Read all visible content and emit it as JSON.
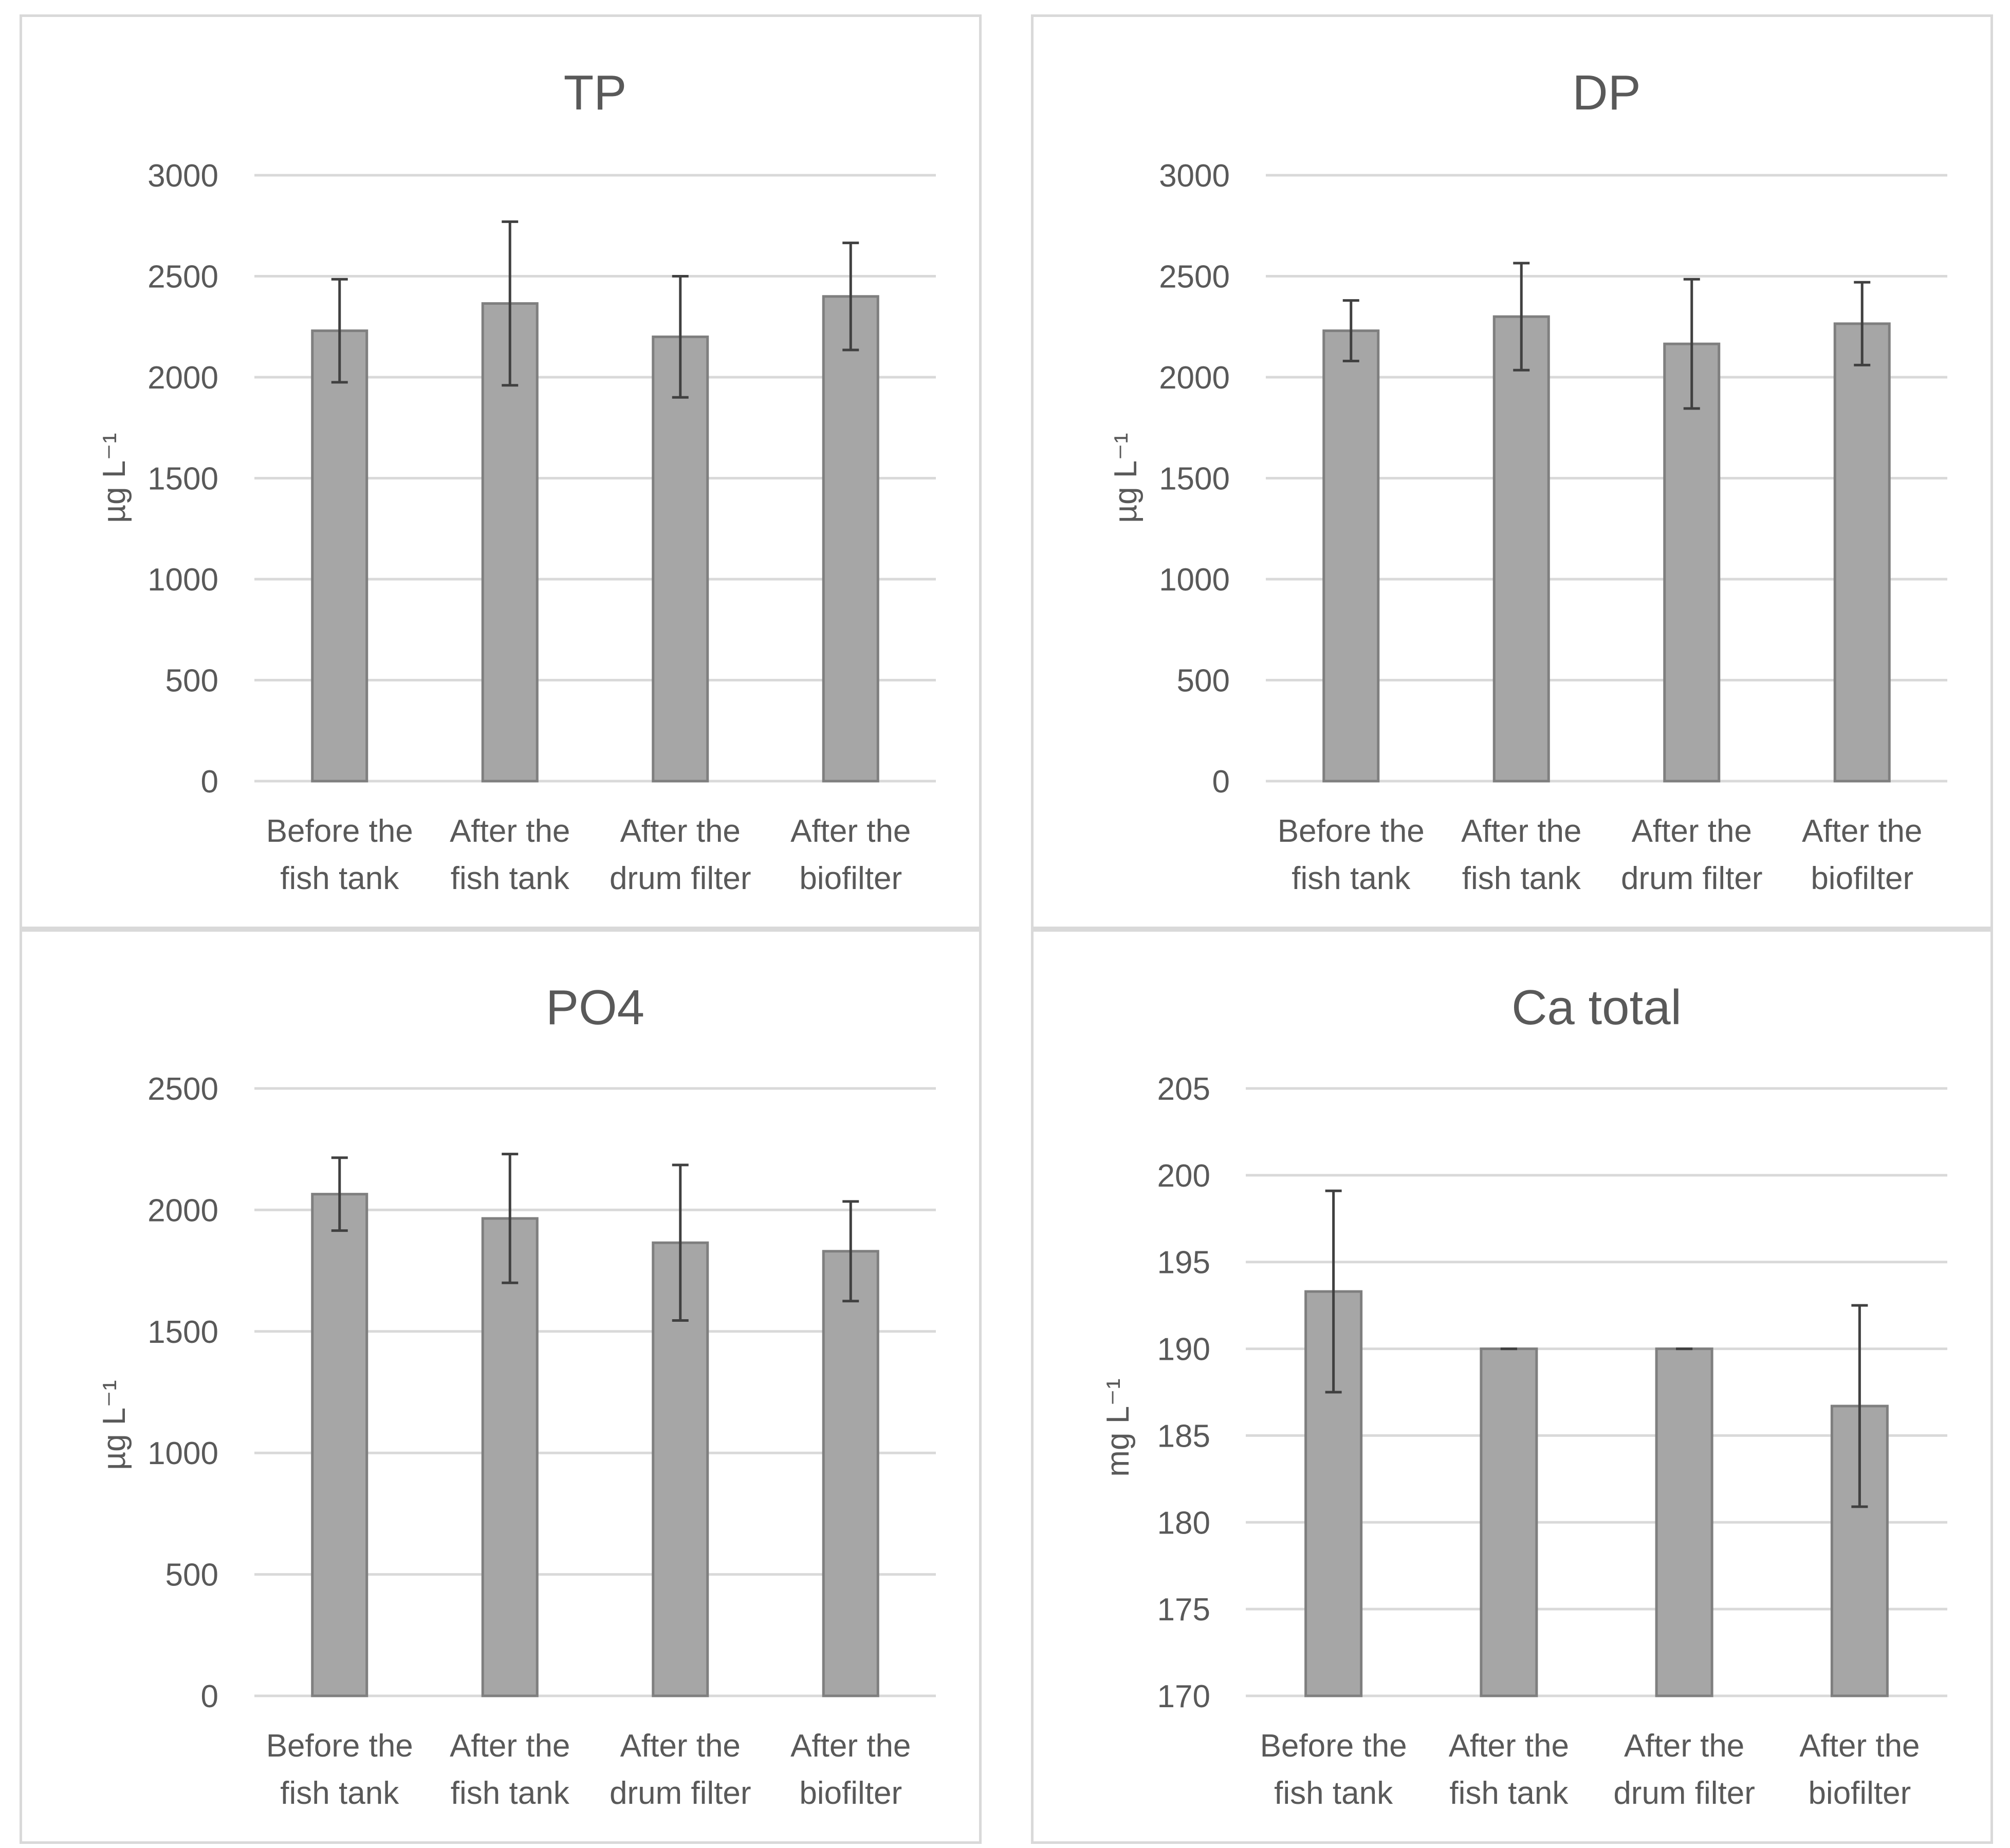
{
  "colors": {
    "bar_fill": "#a6a6a6",
    "bar_stroke": "#7f7f7f",
    "error_bar": "#404040",
    "gridline": "#d9d9d9",
    "text": "#595959"
  },
  "chart_data": [
    {
      "type": "bar",
      "title": "TP",
      "ylabel": "µg L⁻¹",
      "xlabel": "",
      "categories": [
        [
          "Before the",
          "fish tank"
        ],
        [
          "After the",
          "fish tank"
        ],
        [
          "After the",
          "drum filter"
        ],
        [
          "After the",
          "biofilter"
        ]
      ],
      "values": [
        2230,
        2365,
        2200,
        2400
      ],
      "errors": [
        255,
        405,
        300,
        265
      ],
      "ylim": [
        0,
        3000
      ],
      "yticks": [
        0,
        500,
        1000,
        1500,
        2000,
        2500,
        3000
      ],
      "grid": true
    },
    {
      "type": "bar",
      "title": "DP",
      "ylabel": "µg L⁻¹",
      "xlabel": "",
      "categories": [
        [
          "Before the",
          "fish tank"
        ],
        [
          "After the",
          "fish tank"
        ],
        [
          "After the",
          "drum filter"
        ],
        [
          "After the",
          "biofilter"
        ]
      ],
      "values": [
        2230,
        2300,
        2165,
        2265
      ],
      "errors": [
        150,
        265,
        320,
        205
      ],
      "ylim": [
        0,
        3000
      ],
      "yticks": [
        0,
        500,
        1000,
        1500,
        2000,
        2500,
        3000
      ],
      "grid": true
    },
    {
      "type": "bar",
      "title": "PO4",
      "ylabel": "µg L⁻¹",
      "xlabel": "",
      "categories": [
        [
          "Before the",
          "fish tank"
        ],
        [
          "After the",
          "fish tank"
        ],
        [
          "After the",
          "drum filter"
        ],
        [
          "After the",
          "biofilter"
        ]
      ],
      "values": [
        2065,
        1965,
        1865,
        1830
      ],
      "errors": [
        150,
        265,
        320,
        205
      ],
      "ylim": [
        0,
        2500
      ],
      "yticks": [
        0,
        500,
        1000,
        1500,
        2000,
        2500
      ],
      "grid": true
    },
    {
      "type": "bar",
      "title": "Ca total",
      "ylabel": "mg L⁻¹",
      "xlabel": "",
      "categories": [
        [
          "Before the",
          "fish tank"
        ],
        [
          "After the",
          "fish tank"
        ],
        [
          "After the",
          "drum filter"
        ],
        [
          "After the",
          "biofilter"
        ]
      ],
      "values": [
        193.3,
        190,
        190,
        186.7
      ],
      "errors": [
        5.8,
        0,
        0,
        5.8
      ],
      "ylim": [
        170,
        205
      ],
      "yticks": [
        170,
        175,
        180,
        185,
        190,
        195,
        200,
        205
      ],
      "grid": true
    }
  ]
}
